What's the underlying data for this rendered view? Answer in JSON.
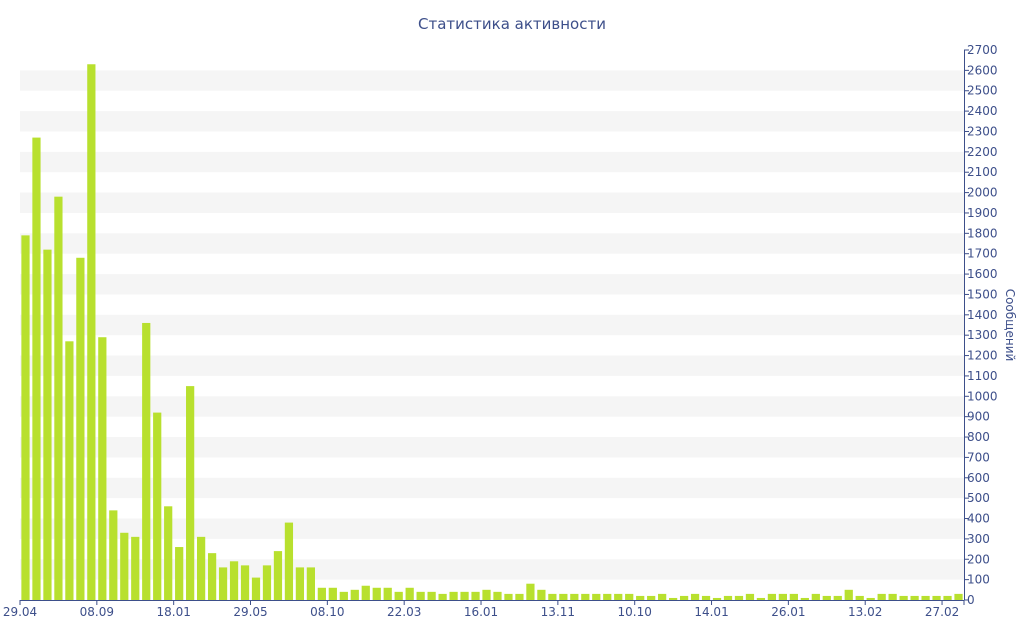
{
  "chart_data": {
    "type": "bar",
    "title": "Статистика активности",
    "ylabel": "Сообщений",
    "xlabel": "",
    "ylim": [
      0,
      2700
    ],
    "y_ticks": [
      0,
      100,
      200,
      300,
      400,
      500,
      600,
      700,
      800,
      900,
      1000,
      1100,
      1200,
      1300,
      1400,
      1500,
      1600,
      1700,
      1800,
      1900,
      2000,
      2100,
      2200,
      2300,
      2400,
      2500,
      2600,
      2700
    ],
    "x_tick_labels": [
      {
        "label": "29.04",
        "index": 0
      },
      {
        "label": "08.09",
        "index": 7
      },
      {
        "label": "18.01",
        "index": 14
      },
      {
        "label": "29.05",
        "index": 21
      },
      {
        "label": "08.10",
        "index": 28
      },
      {
        "label": "22.03",
        "index": 35
      },
      {
        "label": "16.01",
        "index": 42
      },
      {
        "label": "13.11",
        "index": 49
      },
      {
        "label": "10.10",
        "index": 56
      },
      {
        "label": "14.01",
        "index": 63
      },
      {
        "label": "26.01",
        "index": 70
      },
      {
        "label": "13.02",
        "index": 77
      },
      {
        "label": "27.02",
        "index": 84
      }
    ],
    "bar_color": "#b8e02e",
    "band_color": "#f5f5f5",
    "axis_color": "#3d4f8a",
    "grid": true,
    "y_axis_side": "right",
    "values": [
      1790,
      2270,
      1720,
      1980,
      1270,
      1680,
      2630,
      1290,
      440,
      330,
      310,
      1360,
      920,
      460,
      260,
      1050,
      310,
      230,
      160,
      190,
      170,
      110,
      170,
      240,
      380,
      160,
      160,
      60,
      60,
      40,
      50,
      70,
      60,
      60,
      40,
      60,
      40,
      40,
      30,
      40,
      40,
      40,
      50,
      40,
      30,
      30,
      80,
      50,
      30,
      30,
      30,
      30,
      30,
      30,
      30,
      30,
      20,
      20,
      30,
      10,
      20,
      30,
      20,
      10,
      20,
      20,
      30,
      10,
      30,
      30,
      30,
      10,
      30,
      20,
      20,
      50,
      20,
      10,
      30,
      30,
      20,
      20,
      20,
      20,
      20,
      30
    ]
  }
}
